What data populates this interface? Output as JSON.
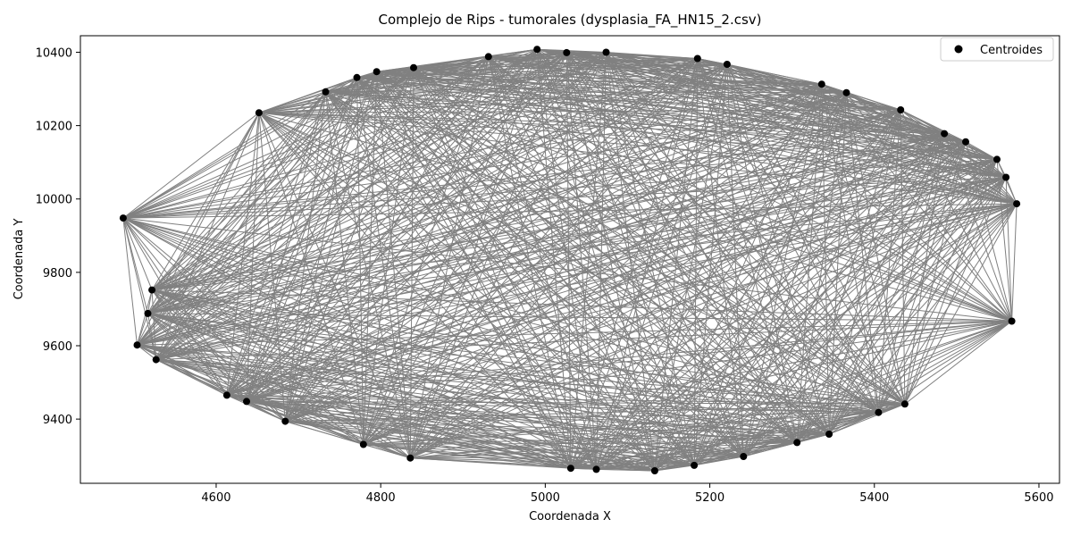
{
  "chart_data": {
    "type": "scatter",
    "title": "Complejo de Rips - tumorales (dysplasia_FA_HN15_2.csv)",
    "xlabel": "Coordenada X",
    "ylabel": "Coordenada Y",
    "xlim": [
      4435,
      5625
    ],
    "ylim": [
      9225,
      10445
    ],
    "xticks": [
      4600,
      4800,
      5000,
      5200,
      5400,
      5600
    ],
    "yticks": [
      9400,
      9600,
      9800,
      10000,
      10200,
      10400
    ],
    "grid": false,
    "legend": {
      "entries": [
        "Centroides"
      ],
      "placement": "top-right"
    },
    "colors": {
      "points": "#000000",
      "edges": "#808080"
    },
    "series": [
      {
        "name": "Centroides",
        "points": [
          [
            4487,
            9948
          ],
          [
            4504,
            9602
          ],
          [
            4517,
            9688
          ],
          [
            4522,
            9752
          ],
          [
            4527,
            9562
          ],
          [
            4613,
            9465
          ],
          [
            4637,
            9448
          ],
          [
            4652,
            10235
          ],
          [
            4684,
            9394
          ],
          [
            4733,
            10292
          ],
          [
            4771,
            10331
          ],
          [
            4779,
            9331
          ],
          [
            4795,
            10347
          ],
          [
            4836,
            9294
          ],
          [
            4840,
            10358
          ],
          [
            4931,
            10388
          ],
          [
            4990,
            10408
          ],
          [
            5026,
            10399
          ],
          [
            5031,
            9266
          ],
          [
            5062,
            9263
          ],
          [
            5074,
            10400
          ],
          [
            5133,
            9259
          ],
          [
            5181,
            9274
          ],
          [
            5185,
            10383
          ],
          [
            5221,
            10367
          ],
          [
            5241,
            9298
          ],
          [
            5306,
            9336
          ],
          [
            5336,
            10313
          ],
          [
            5345,
            9359
          ],
          [
            5366,
            10290
          ],
          [
            5405,
            9418
          ],
          [
            5432,
            10243
          ],
          [
            5437,
            9441
          ],
          [
            5485,
            10178
          ],
          [
            5511,
            10156
          ],
          [
            5549,
            10108
          ],
          [
            5560,
            10059
          ],
          [
            5567,
            9667
          ],
          [
            5573,
            9987
          ]
        ]
      }
    ]
  }
}
